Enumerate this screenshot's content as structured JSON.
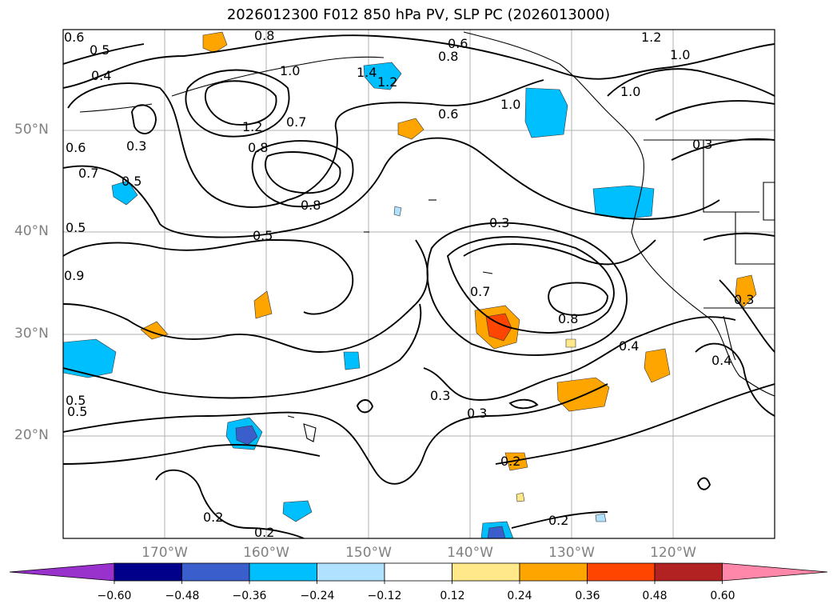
{
  "title": "2026012300 F012 850 hPa PV, SLP PC (2026013000)",
  "lat_ticks": [
    "50°N",
    "40°N",
    "30°N",
    "20°N"
  ],
  "lon_ticks": [
    "170°W",
    "160°W",
    "150°W",
    "140°W",
    "130°W",
    "120°W"
  ],
  "colorbar": {
    "ticks": [
      "−0.60",
      "−0.48",
      "−0.36",
      "−0.24",
      "−0.12",
      "0.12",
      "0.24",
      "0.36",
      "0.48",
      "0.60"
    ],
    "colors": [
      "#9932cc",
      "#00008b",
      "#3a5fcd",
      "#00bfff",
      "#b0e2ff",
      "#ffffff",
      "#ffe88a",
      "#ffa500",
      "#ff4500",
      "#b22222",
      "#ff88aa"
    ]
  },
  "contour_labels": [
    "0.6",
    "0.5",
    "0.4",
    "0.8",
    "1.0",
    "1.4",
    "1.2",
    "0.6",
    "0.8",
    "1.2",
    "1.0",
    "0.3",
    "0.5",
    "1.2",
    "0.8",
    "0.7",
    "0.6",
    "1.0",
    "1.0",
    "0.6",
    "0.7",
    "0.8",
    "0.5",
    "0.3",
    "0.5",
    "0.7",
    "0.3",
    "0.8",
    "0.4",
    "0.4",
    "0.3",
    "0.5",
    "0.3",
    "0.9",
    "0.5",
    "0.3",
    "0.2",
    "0.2",
    "0.2",
    "0.2"
  ]
}
